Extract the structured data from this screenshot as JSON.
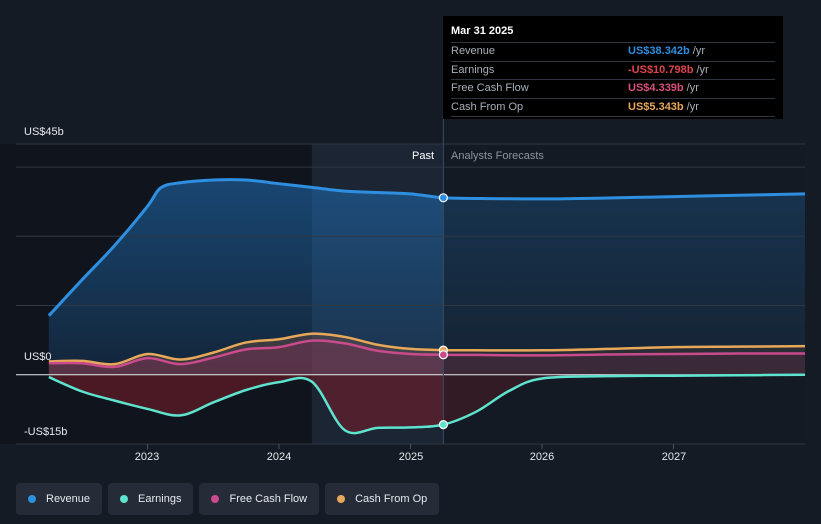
{
  "tooltip": {
    "date": "Mar 31 2025",
    "rows": [
      {
        "label": "Revenue",
        "value": "US$38.342b",
        "unit": "/yr",
        "color": "#2e8fe0"
      },
      {
        "label": "Earnings",
        "value": "-US$10.798b",
        "unit": "/yr",
        "color": "#e0434e"
      },
      {
        "label": "Free Cash Flow",
        "value": "US$4.339b",
        "unit": "/yr",
        "color": "#d8507e"
      },
      {
        "label": "Cash From Op",
        "value": "US$5.343b",
        "unit": "/yr",
        "color": "#e8a85a"
      }
    ]
  },
  "regions": {
    "past": "Past",
    "forecast": "Analysts Forecasts"
  },
  "legend": [
    {
      "label": "Revenue",
      "color": "#2e8fe0"
    },
    {
      "label": "Earnings",
      "color": "#5ee3cf"
    },
    {
      "label": "Free Cash Flow",
      "color": "#c94b8c"
    },
    {
      "label": "Cash From Op",
      "color": "#e8a85a"
    }
  ],
  "chart_data": {
    "type": "line",
    "ylim": [
      -15,
      45
    ],
    "y_tick_labels": [
      "US$45b",
      "US$0",
      "-US$15b"
    ],
    "x_tick_labels": [
      "2023",
      "2024",
      "2025",
      "2026",
      "2027"
    ],
    "past_end": 2025.25,
    "highlight_start": 2024.25,
    "series": [
      {
        "name": "Revenue",
        "color": "#2e8fe0",
        "x": [
          2022.25,
          2022.5,
          2022.75,
          2023.0,
          2023.1,
          2023.25,
          2023.5,
          2023.75,
          2024.0,
          2024.25,
          2024.5,
          2024.75,
          2025.0,
          2025.25,
          2025.5,
          2026.0,
          2026.5,
          2027.0,
          2027.5,
          2028.0
        ],
        "y": [
          12.8,
          20.5,
          28,
          36.5,
          40.5,
          41.6,
          42.2,
          42.2,
          41.4,
          40.6,
          39.8,
          39.5,
          39.2,
          38.342,
          38.2,
          38.1,
          38.3,
          38.6,
          38.9,
          39.2
        ]
      },
      {
        "name": "Earnings",
        "color": "#5ee3cf",
        "x": [
          2022.25,
          2022.5,
          2022.75,
          2023.0,
          2023.25,
          2023.5,
          2023.75,
          2024.0,
          2024.25,
          2024.5,
          2024.75,
          2025.0,
          2025.25,
          2025.5,
          2025.75,
          2026.0,
          2026.5,
          2027.0,
          2027.5,
          2028.0
        ],
        "y": [
          -0.5,
          -3.6,
          -5.6,
          -7.4,
          -8.8,
          -6.0,
          -3.3,
          -1.6,
          -1.5,
          -12,
          -11.5,
          -11.4,
          -10.798,
          -8.0,
          -3.5,
          -0.8,
          -0.3,
          -0.2,
          -0.1,
          0
        ]
      },
      {
        "name": "Free Cash Flow",
        "color": "#c94b8c",
        "x": [
          2022.25,
          2022.5,
          2022.75,
          2023.0,
          2023.25,
          2023.5,
          2023.75,
          2024.0,
          2024.25,
          2024.5,
          2024.75,
          2025.0,
          2025.25,
          2025.5,
          2026.0,
          2026.5,
          2027.0,
          2027.5,
          2028.0
        ],
        "y": [
          2.5,
          2.5,
          1.7,
          3.6,
          2.3,
          3.7,
          5.5,
          6.0,
          7.4,
          6.8,
          5.2,
          4.5,
          4.339,
          4.3,
          4.2,
          4.4,
          4.5,
          4.6,
          4.6
        ]
      },
      {
        "name": "Cash From Op",
        "color": "#e8a85a",
        "x": [
          2022.25,
          2022.5,
          2022.75,
          2023.0,
          2023.25,
          2023.5,
          2023.75,
          2024.0,
          2024.25,
          2024.5,
          2024.75,
          2025.0,
          2025.25,
          2025.5,
          2026.0,
          2026.5,
          2027.0,
          2027.5,
          2028.0
        ],
        "y": [
          2.9,
          3.0,
          2.3,
          4.5,
          3.3,
          4.8,
          7.0,
          7.7,
          8.9,
          8.2,
          6.5,
          5.6,
          5.343,
          5.3,
          5.3,
          5.6,
          6.0,
          6.1,
          6.2
        ]
      }
    ]
  }
}
